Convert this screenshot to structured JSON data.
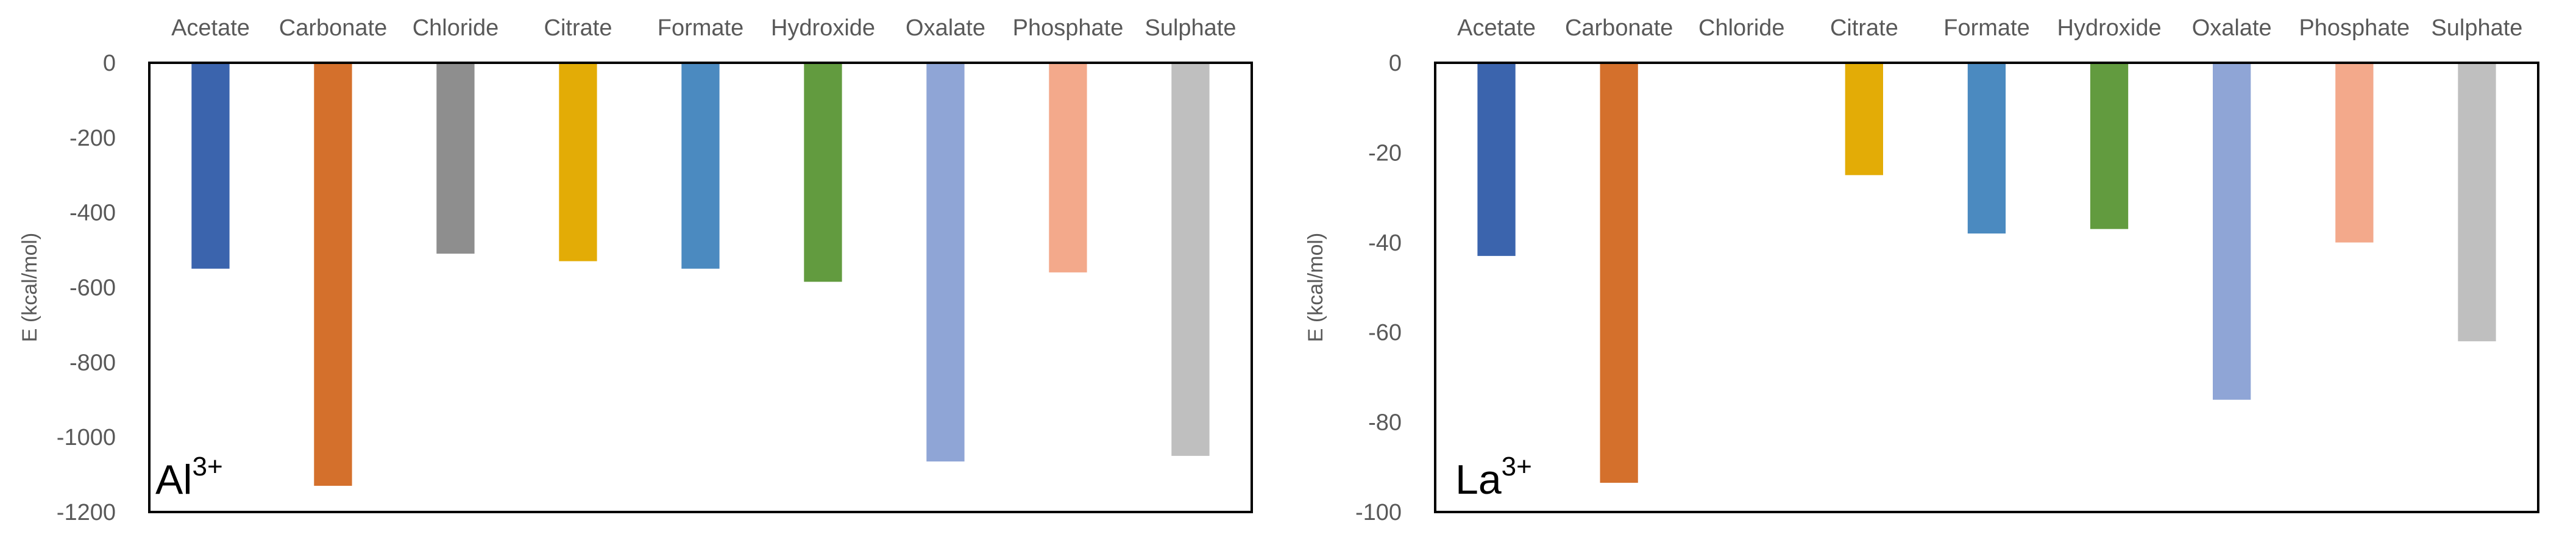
{
  "chart_data": [
    {
      "type": "bar",
      "categories": [
        "Acetate",
        "Carbonate",
        "Chloride",
        "Citrate",
        "Formate",
        "Hydroxide",
        "Oxalate",
        "Phosphate",
        "Sulphate"
      ],
      "values": [
        -550,
        -1130,
        -510,
        -530,
        -550,
        -585,
        -1065,
        -560,
        -1050
      ],
      "colors": [
        "#3b64ad",
        "#d4702c",
        "#8e8e8e",
        "#e3ac06",
        "#4b8ac0",
        "#629b3f",
        "#8fa5d6",
        "#f3a98b",
        "#bfbfbf"
      ],
      "ylabel": "E (kcal/mol)",
      "ylim": [
        -1200,
        0
      ],
      "yticks": [
        0,
        -200,
        -400,
        -600,
        -800,
        -1000,
        -1200
      ],
      "ion": "Al",
      "ion_charge": "3+",
      "grid": false,
      "category_axis_position": "top"
    },
    {
      "type": "bar",
      "categories": [
        "Acetate",
        "Carbonate",
        "Chloride",
        "Citrate",
        "Formate",
        "Hydroxide",
        "Oxalate",
        "Phosphate",
        "Sulphate"
      ],
      "values": [
        -43,
        -93.5,
        0,
        -25,
        -38,
        -37,
        -75,
        -40,
        -62
      ],
      "colors": [
        "#3b64ad",
        "#d4702c",
        "#8e8e8e",
        "#e3ac06",
        "#4b8ac0",
        "#629b3f",
        "#8fa5d6",
        "#f3a98b",
        "#bfbfbf"
      ],
      "ylabel": "E (kcal/mol)",
      "ylim": [
        -100,
        0
      ],
      "yticks": [
        0,
        -20,
        -40,
        -60,
        -80,
        -100
      ],
      "ion": "La",
      "ion_charge": "3+",
      "grid": false,
      "category_axis_position": "top"
    }
  ]
}
